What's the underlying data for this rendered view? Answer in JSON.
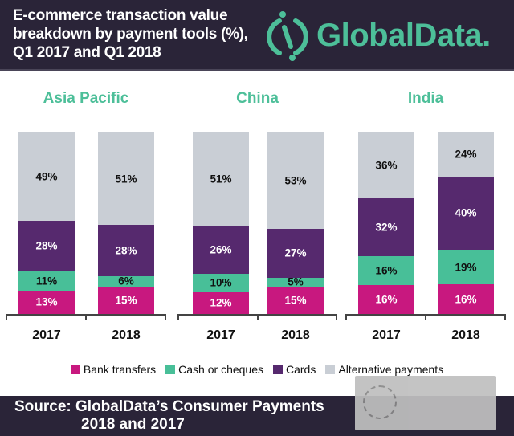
{
  "title": "E-commerce transaction value breakdown by payment tools (%), Q1 2017 and Q1 2018",
  "logo": {
    "text": "GlobalData.",
    "color": "#4dbf99"
  },
  "source": {
    "line1": "Source: GlobalData’s Consumer Payments",
    "line2": "2018 and 2017"
  },
  "colors": {
    "bank": "#c8187f",
    "cash": "#48bf98",
    "cards": "#56296e",
    "alt": "#c9ced5",
    "header_bg": "#2a2438"
  },
  "chart_data": {
    "type": "bar",
    "stacked": true,
    "title": "E-commerce transaction value breakdown by payment tools (%), Q1 2017 and Q1 2018",
    "legend": {
      "placement": "bottom",
      "entries": [
        "Bank transfers",
        "Cash or cheques",
        "Cards",
        "Alternative payments"
      ]
    },
    "panels": [
      {
        "region": "Asia Pacific",
        "categories": [
          "2017",
          "2018"
        ],
        "series": [
          {
            "name": "Bank transfers",
            "values": [
              13,
              15
            ]
          },
          {
            "name": "Cash or cheques",
            "values": [
              11,
              6
            ]
          },
          {
            "name": "Cards",
            "values": [
              28,
              28
            ]
          },
          {
            "name": "Alternative payments",
            "values": [
              49,
              51
            ]
          }
        ]
      },
      {
        "region": "China",
        "categories": [
          "2017",
          "2018"
        ],
        "series": [
          {
            "name": "Bank transfers",
            "values": [
              12,
              15
            ]
          },
          {
            "name": "Cash or cheques",
            "values": [
              10,
              5
            ]
          },
          {
            "name": "Cards",
            "values": [
              26,
              27
            ]
          },
          {
            "name": "Alternative payments",
            "values": [
              51,
              53
            ]
          }
        ]
      },
      {
        "region": "India",
        "categories": [
          "2017",
          "2018"
        ],
        "series": [
          {
            "name": "Bank transfers",
            "values": [
              16,
              16
            ]
          },
          {
            "name": "Cash or cheques",
            "values": [
              16,
              19
            ]
          },
          {
            "name": "Cards",
            "values": [
              32,
              40
            ]
          },
          {
            "name": "Alternative payments",
            "values": [
              36,
              24
            ]
          }
        ]
      }
    ]
  }
}
